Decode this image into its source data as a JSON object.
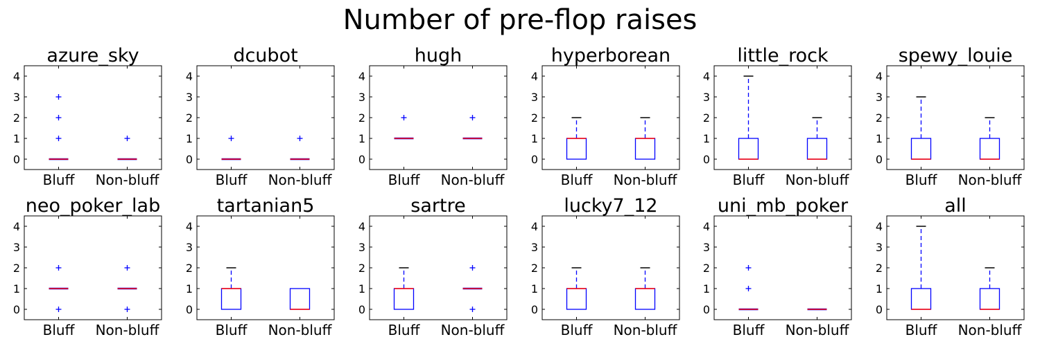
{
  "figure_title": "Number of pre-flop raises",
  "colors": {
    "box": "#0000ff",
    "median": "#ff0000",
    "whisker": "#0000ff",
    "cap": "#000000",
    "flier": "#0000ff"
  },
  "chart_data": [
    {
      "type": "box",
      "title": "azure_sky",
      "categories": [
        "Bluff",
        "Non-bluff"
      ],
      "ylim": [
        -0.5,
        4.5
      ],
      "yticks": [
        0,
        1,
        2,
        3,
        4
      ],
      "boxes": [
        {
          "q1": 0,
          "median": 0,
          "q3": 0,
          "whislo": 0,
          "whishi": 0,
          "fliers": [
            1,
            2,
            3
          ]
        },
        {
          "q1": 0,
          "median": 0,
          "q3": 0,
          "whislo": 0,
          "whishi": 0,
          "fliers": [
            1
          ]
        }
      ]
    },
    {
      "type": "box",
      "title": "dcubot",
      "categories": [
        "Bluff",
        "Non-bluff"
      ],
      "ylim": [
        -0.5,
        4.5
      ],
      "yticks": [
        0,
        1,
        2,
        3,
        4
      ],
      "boxes": [
        {
          "q1": 0,
          "median": 0,
          "q3": 0,
          "whislo": 0,
          "whishi": 0,
          "fliers": [
            1
          ]
        },
        {
          "q1": 0,
          "median": 0,
          "q3": 0,
          "whislo": 0,
          "whishi": 0,
          "fliers": [
            1
          ]
        }
      ]
    },
    {
      "type": "box",
      "title": "hugh",
      "categories": [
        "Bluff",
        "Non-bluff"
      ],
      "ylim": [
        -0.5,
        4.5
      ],
      "yticks": [
        0,
        1,
        2,
        3,
        4
      ],
      "boxes": [
        {
          "q1": 1,
          "median": 1,
          "q3": 1,
          "whislo": 1,
          "whishi": 1,
          "fliers": [
            2
          ]
        },
        {
          "q1": 1,
          "median": 1,
          "q3": 1,
          "whislo": 1,
          "whishi": 1,
          "fliers": [
            2
          ]
        }
      ]
    },
    {
      "type": "box",
      "title": "hyperborean",
      "categories": [
        "Bluff",
        "Non-bluff"
      ],
      "ylim": [
        -0.5,
        4.5
      ],
      "yticks": [
        0,
        1,
        2,
        3,
        4
      ],
      "boxes": [
        {
          "q1": 0,
          "median": 1,
          "q3": 1,
          "whislo": 0,
          "whishi": 2,
          "fliers": []
        },
        {
          "q1": 0,
          "median": 1,
          "q3": 1,
          "whislo": 0,
          "whishi": 2,
          "fliers": []
        }
      ]
    },
    {
      "type": "box",
      "title": "little_rock",
      "categories": [
        "Bluff",
        "Non-bluff"
      ],
      "ylim": [
        -0.5,
        4.5
      ],
      "yticks": [
        0,
        1,
        2,
        3,
        4
      ],
      "boxes": [
        {
          "q1": 0,
          "median": 0,
          "q3": 1,
          "whislo": 0,
          "whishi": 4,
          "fliers": []
        },
        {
          "q1": 0,
          "median": 0,
          "q3": 1,
          "whislo": 0,
          "whishi": 2,
          "fliers": []
        }
      ]
    },
    {
      "type": "box",
      "title": "spewy_louie",
      "categories": [
        "Bluff",
        "Non-bluff"
      ],
      "ylim": [
        -0.5,
        4.5
      ],
      "yticks": [
        0,
        1,
        2,
        3,
        4
      ],
      "boxes": [
        {
          "q1": 0,
          "median": 0,
          "q3": 1,
          "whislo": 0,
          "whishi": 3,
          "fliers": []
        },
        {
          "q1": 0,
          "median": 0,
          "q3": 1,
          "whislo": 0,
          "whishi": 2,
          "fliers": []
        }
      ]
    },
    {
      "type": "box",
      "title": "neo_poker_lab",
      "categories": [
        "Bluff",
        "Non-bluff"
      ],
      "ylim": [
        -0.5,
        4.5
      ],
      "yticks": [
        0,
        1,
        2,
        3,
        4
      ],
      "boxes": [
        {
          "q1": 1,
          "median": 1,
          "q3": 1,
          "whislo": 1,
          "whishi": 1,
          "fliers": [
            0,
            2
          ]
        },
        {
          "q1": 1,
          "median": 1,
          "q3": 1,
          "whislo": 1,
          "whishi": 1,
          "fliers": [
            0,
            2
          ]
        }
      ]
    },
    {
      "type": "box",
      "title": "tartanian5",
      "categories": [
        "Bluff",
        "Non-bluff"
      ],
      "ylim": [
        -0.5,
        4.5
      ],
      "yticks": [
        0,
        1,
        2,
        3,
        4
      ],
      "boxes": [
        {
          "q1": 0,
          "median": 1,
          "q3": 1,
          "whislo": 0,
          "whishi": 2,
          "fliers": []
        },
        {
          "q1": 0,
          "median": 0,
          "q3": 1,
          "whislo": 0,
          "whishi": 1,
          "fliers": []
        }
      ]
    },
    {
      "type": "box",
      "title": "sartre",
      "categories": [
        "Bluff",
        "Non-bluff"
      ],
      "ylim": [
        -0.5,
        4.5
      ],
      "yticks": [
        0,
        1,
        2,
        3,
        4
      ],
      "boxes": [
        {
          "q1": 0,
          "median": 1,
          "q3": 1,
          "whislo": 0,
          "whishi": 2,
          "fliers": []
        },
        {
          "q1": 1,
          "median": 1,
          "q3": 1,
          "whislo": 1,
          "whishi": 1,
          "fliers": [
            0,
            2
          ]
        }
      ]
    },
    {
      "type": "box",
      "title": "lucky7_12",
      "categories": [
        "Bluff",
        "Non-bluff"
      ],
      "ylim": [
        -0.5,
        4.5
      ],
      "yticks": [
        0,
        1,
        2,
        3,
        4
      ],
      "boxes": [
        {
          "q1": 0,
          "median": 1,
          "q3": 1,
          "whislo": 0,
          "whishi": 2,
          "fliers": []
        },
        {
          "q1": 0,
          "median": 1,
          "q3": 1,
          "whislo": 0,
          "whishi": 2,
          "fliers": []
        }
      ]
    },
    {
      "type": "box",
      "title": "uni_mb_poker",
      "categories": [
        "Bluff",
        "Non-bluff"
      ],
      "ylim": [
        -0.5,
        4.5
      ],
      "yticks": [
        0,
        1,
        2,
        3,
        4
      ],
      "boxes": [
        {
          "q1": 0,
          "median": 0,
          "q3": 0,
          "whislo": 0,
          "whishi": 0,
          "fliers": [
            1,
            2
          ]
        },
        {
          "q1": 0,
          "median": 0,
          "q3": 0,
          "whislo": 0,
          "whishi": 0,
          "fliers": []
        }
      ]
    },
    {
      "type": "box",
      "title": "all",
      "categories": [
        "Bluff",
        "Non-bluff"
      ],
      "ylim": [
        -0.5,
        4.5
      ],
      "yticks": [
        0,
        1,
        2,
        3,
        4
      ],
      "boxes": [
        {
          "q1": 0,
          "median": 0,
          "q3": 1,
          "whislo": 0,
          "whishi": 4,
          "fliers": []
        },
        {
          "q1": 0,
          "median": 0,
          "q3": 1,
          "whislo": 0,
          "whishi": 2,
          "fliers": []
        }
      ]
    }
  ]
}
